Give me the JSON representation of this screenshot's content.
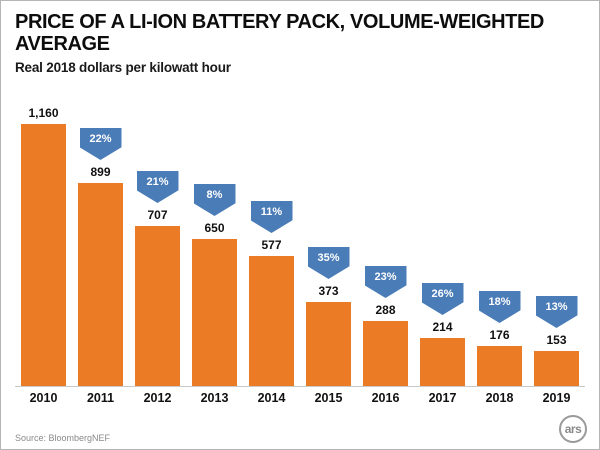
{
  "title": "PRICE OF A LI-ION BATTERY PACK, VOLUME-WEIGHTED AVERAGE",
  "subtitle": "Real 2018 dollars per kilowatt hour",
  "source": "Source: BloombergNEF",
  "logo_text": "ars",
  "colors": {
    "bar": "#ec7b26",
    "arrow": "#4a7cb8",
    "title": "#0d0d0d",
    "source_text": "#8a8a8a"
  },
  "chart_data": {
    "type": "bar",
    "title": "PRICE OF A LI-ION BATTERY PACK, VOLUME-WEIGHTED AVERAGE",
    "subtitle": "Real 2018 dollars per kilowatt hour",
    "xlabel": "",
    "ylabel": "Real 2018 dollars per kilowatt hour",
    "ylim": [
      0,
      1160
    ],
    "grid": false,
    "legend": false,
    "categories": [
      "2010",
      "2011",
      "2012",
      "2013",
      "2014",
      "2015",
      "2016",
      "2017",
      "2018",
      "2019"
    ],
    "values": [
      1160,
      899,
      707,
      650,
      577,
      373,
      288,
      214,
      176,
      153
    ],
    "value_labels": [
      "1,160",
      "899",
      "707",
      "650",
      "577",
      "373",
      "288",
      "214",
      "176",
      "153"
    ],
    "pct_change_labels": [
      null,
      "22%",
      "21%",
      "8%",
      "11%",
      "35%",
      "23%",
      "26%",
      "18%",
      "13%"
    ],
    "annotations": "Blue downward arrows show percent decrease vs. prior year"
  }
}
